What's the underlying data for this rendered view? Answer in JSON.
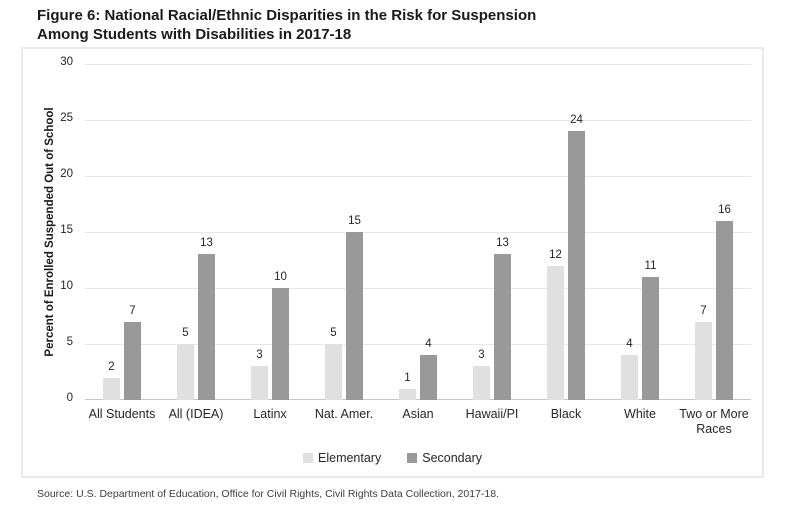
{
  "title": {
    "line1": "Figure 6: National Racial/Ethnic Disparities in the Risk for Suspension",
    "line2": "Among Students with Disabilities in 2017-18"
  },
  "source": "Source: U.S. Department of Education, Office for Civil Rights, Civil Rights Data Collection, 2017-18.",
  "chart_data": {
    "type": "bar",
    "title": "Figure 6: National Racial/Ethnic Disparities in the Risk for Suspension Among Students with Disabilities in 2017-18",
    "categories": [
      "All Students",
      "All (IDEA)",
      "Latinx",
      "Nat. Amer.",
      "Asian",
      "Hawaii/PI",
      "Black",
      "White",
      "Two or More Races"
    ],
    "series": [
      {
        "name": "Elementary",
        "color": "#e0e0e0",
        "values": [
          2,
          5,
          3,
          5,
          1,
          3,
          12,
          4,
          7
        ]
      },
      {
        "name": "Secondary",
        "color": "#999999",
        "values": [
          7,
          13,
          10,
          15,
          4,
          13,
          24,
          11,
          16
        ]
      }
    ],
    "xlabel": "",
    "ylabel": "Percent of Enrolled Suspended Out of School",
    "ylim": [
      0,
      30
    ],
    "yticks": [
      0,
      5,
      10,
      15,
      20,
      25,
      30
    ],
    "grid": true,
    "value_labels": true,
    "legend_position": "bottom",
    "colors": {
      "gridline": "#e7e7e7",
      "zero_line": "#c6c6c6",
      "text": "#262626",
      "frame_border": "#eaeaea"
    }
  }
}
